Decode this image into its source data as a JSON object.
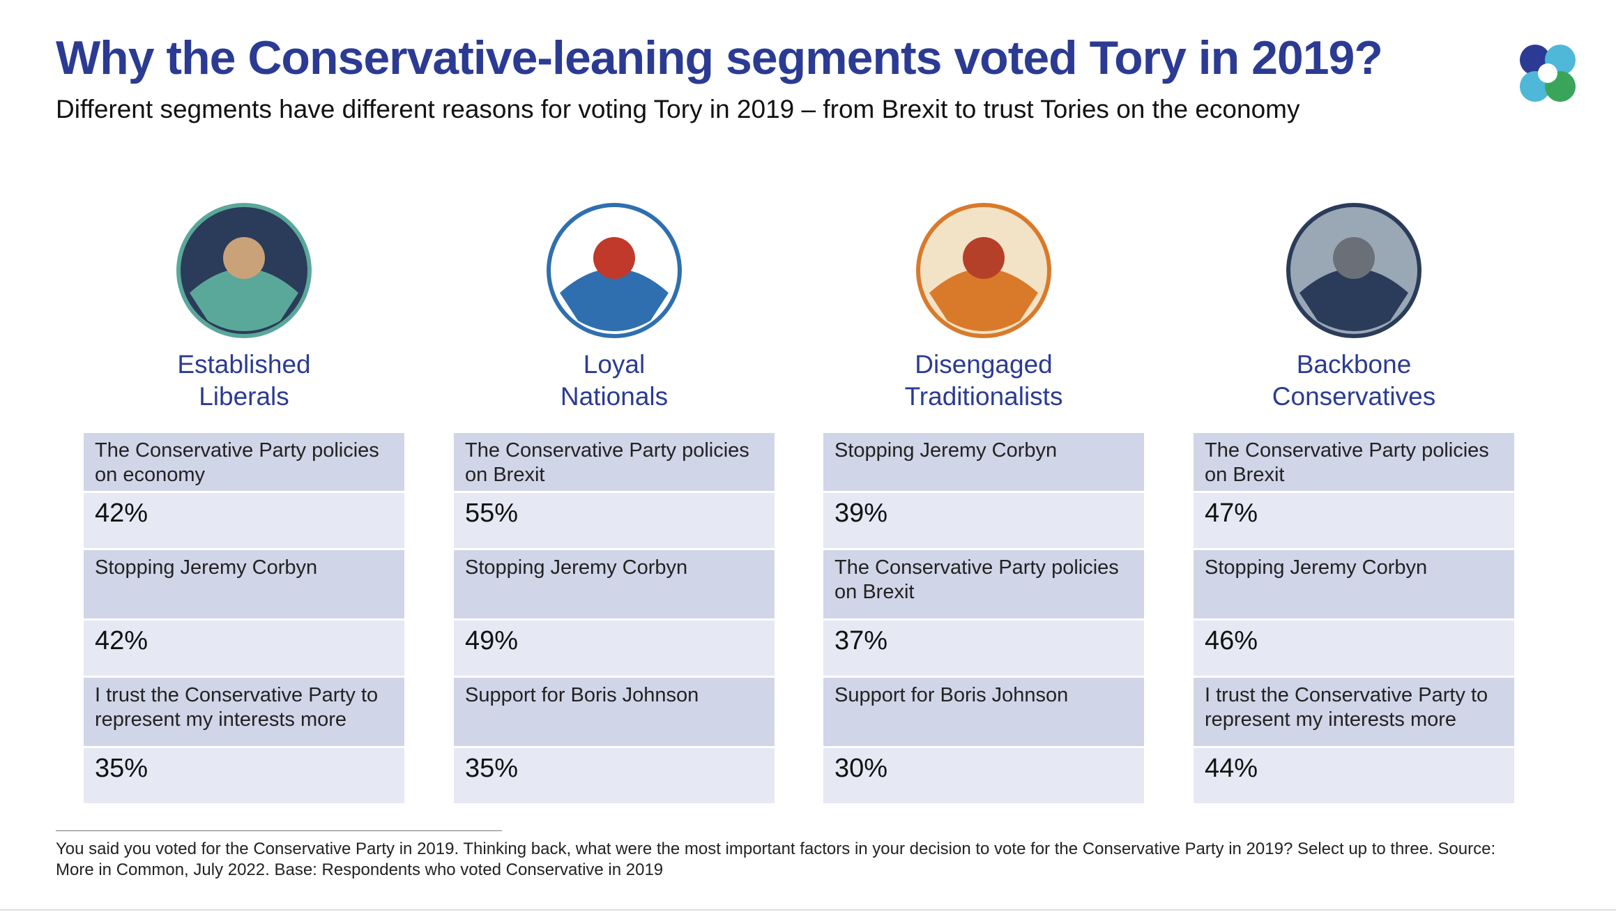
{
  "header": {
    "title": "Why the Conservative-leaning segments voted Tory in 2019?",
    "subtitle": "Different segments have different reasons for voting Tory in 2019 – from Brexit to trust Tories on the economy"
  },
  "segments": [
    {
      "name": "Established Liberals",
      "factors": [
        {
          "label": "The Conservative Party policies on economy",
          "value": "42%"
        },
        {
          "label": "Stopping Jeremy Corbyn",
          "value": "42%"
        },
        {
          "label": "I trust the Conservative Party to represent my interests more",
          "value": "35%"
        }
      ]
    },
    {
      "name": "Loyal Nationals",
      "factors": [
        {
          "label": "The Conservative Party policies on Brexit",
          "value": "55%"
        },
        {
          "label": "Stopping Jeremy Corbyn",
          "value": "49%"
        },
        {
          "label": "Support for Boris Johnson",
          "value": "35%"
        }
      ]
    },
    {
      "name": "Disengaged Traditionalists",
      "factors": [
        {
          "label": "Stopping Jeremy Corbyn",
          "value": "39%"
        },
        {
          "label": "The Conservative Party policies on Brexit",
          "value": "37%"
        },
        {
          "label": "Support for Boris Johnson",
          "value": "30%"
        }
      ]
    },
    {
      "name": "Backbone Conservatives",
      "factors": [
        {
          "label": "The Conservative Party policies on Brexit",
          "value": "47%"
        },
        {
          "label": "Stopping Jeremy Corbyn",
          "value": "46%"
        },
        {
          "label": "I trust the Conservative Party to represent my interests more",
          "value": "44%"
        }
      ]
    }
  ],
  "footnote": "You said you voted for the Conservative Party in 2019. Thinking back, what were the most important factors in your decision to vote for the Conservative Party in 2019? Select up to three. Source: More in Common, July 2022. Base: Respondents who voted Conservative in 2019"
}
